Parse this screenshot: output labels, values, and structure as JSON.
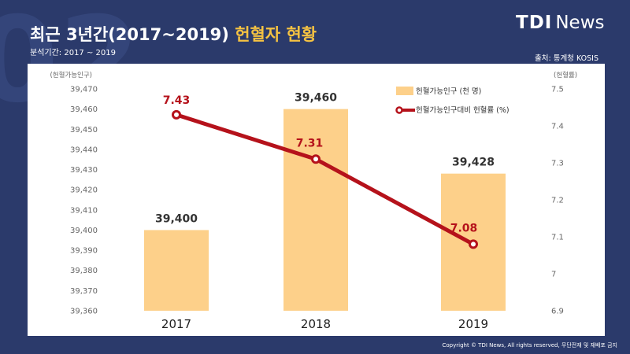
{
  "header": {
    "bg_number": "02",
    "title_main": "최근 3년간(2017~2019) ",
    "title_accent": "헌혈자 현황",
    "period": "분석기간: 2017 ~ 2019",
    "source": "출처: 통계청 KOSIS",
    "logo_tdi": "TDI",
    "logo_news": "News",
    "copyright": "Copyright © TDI News, All rights reserved, 무단전재 및 재배포 금지"
  },
  "colors": {
    "background": "#2b3a6b",
    "bar": "#fdd08a",
    "line": "#b5121b",
    "accent": "#f5c242"
  },
  "chart_data": {
    "type": "bar",
    "categories": [
      "2017",
      "2018",
      "2019"
    ],
    "series": [
      {
        "name": "헌혈가능인구 (천 명)",
        "type": "bar",
        "axis": "left",
        "values": [
          39400,
          39460,
          39428
        ],
        "labels": [
          "39,400",
          "39,460",
          "39,428"
        ]
      },
      {
        "name": "헌혈가능인구대비  헌혈률 (%)",
        "type": "line",
        "axis": "right",
        "values": [
          7.43,
          7.31,
          7.08
        ],
        "labels": [
          "7.43",
          "7.31",
          "7.08"
        ]
      }
    ],
    "y_left": {
      "label": "(헌혈가능인구)",
      "range": [
        39360,
        39470
      ],
      "ticks": [
        "39,360",
        "39,370",
        "39,380",
        "39,390",
        "39,400",
        "39,410",
        "39,420",
        "39,430",
        "39,440",
        "39,450",
        "39,460",
        "39,470"
      ],
      "tick_values": [
        39360,
        39370,
        39380,
        39390,
        39400,
        39410,
        39420,
        39430,
        39440,
        39450,
        39460,
        39470
      ]
    },
    "y_right": {
      "label": "(헌혈률)",
      "range": [
        6.9,
        7.5
      ],
      "ticks": [
        "6.9",
        "7",
        "7.1",
        "7.2",
        "7.3",
        "7.4",
        "7.5"
      ],
      "tick_values": [
        6.9,
        7.0,
        7.1,
        7.2,
        7.3,
        7.4,
        7.5
      ]
    },
    "legend_position": "top-right",
    "grid": false
  }
}
